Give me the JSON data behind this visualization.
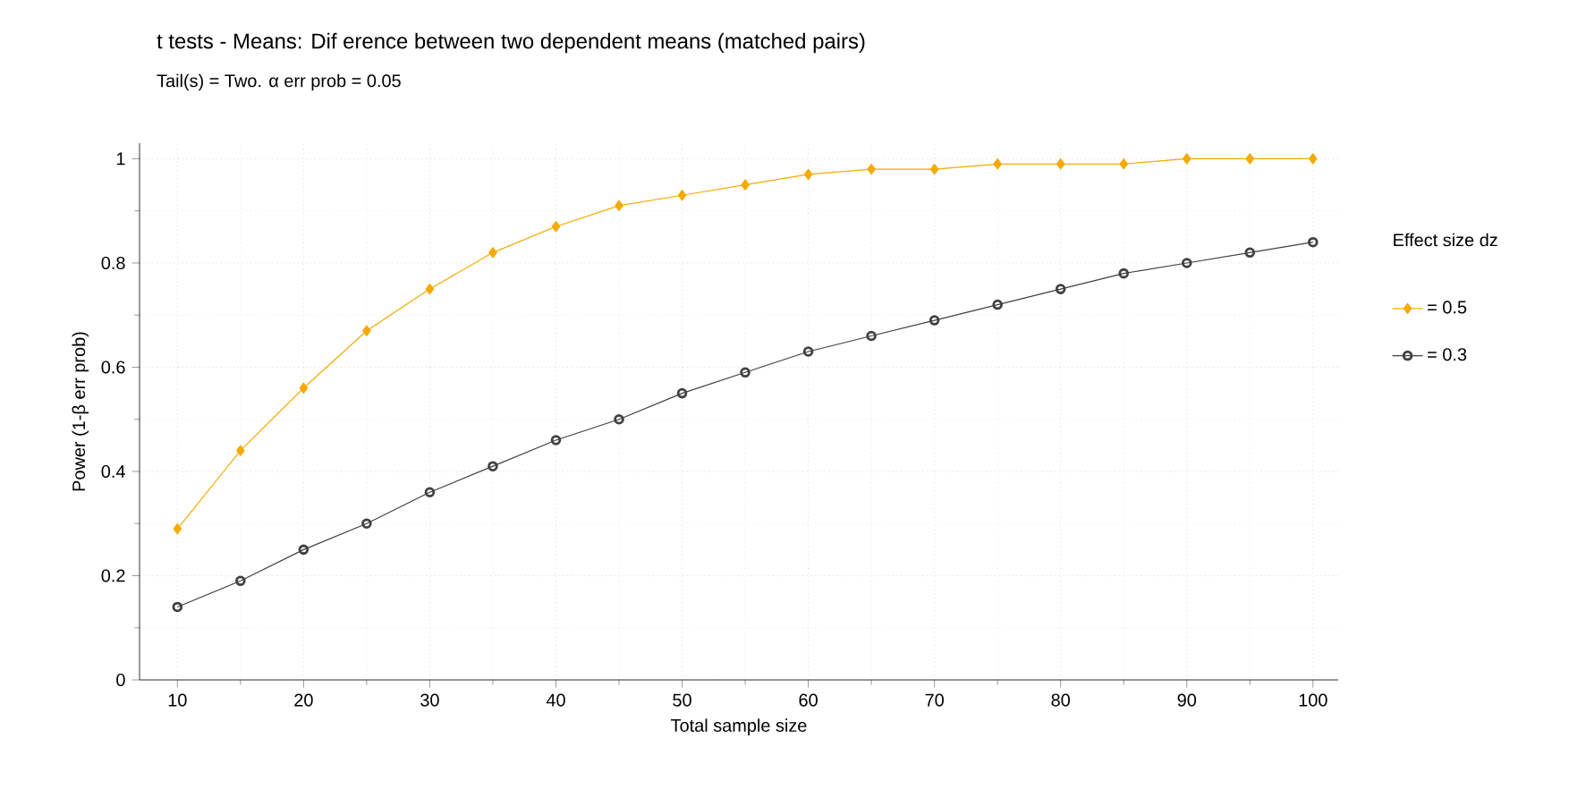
{
  "chart_data": {
    "type": "line",
    "title": "t tests - Means: Dif erence between two dependent means (matched pairs)",
    "subtitle": "Tail(s) = Two. α err prob = 0.05",
    "xlabel": "Total sample size",
    "ylabel": "Power (1-β err prob)",
    "legend_title": "Effect size dz",
    "x": [
      10,
      15,
      20,
      25,
      30,
      35,
      40,
      45,
      50,
      55,
      60,
      65,
      70,
      75,
      80,
      85,
      90,
      95,
      100
    ],
    "series": [
      {
        "name": "= 0.5",
        "color": "#f5aa00",
        "marker": "diamond",
        "values": [
          0.29,
          0.44,
          0.56,
          0.67,
          0.75,
          0.82,
          0.87,
          0.91,
          0.93,
          0.95,
          0.97,
          0.98,
          0.98,
          0.99,
          0.99,
          0.99,
          1.0,
          1.0,
          1.0
        ]
      },
      {
        "name": "= 0.3",
        "color": "#404040",
        "marker": "circle",
        "values": [
          0.14,
          0.19,
          0.25,
          0.3,
          0.36,
          0.41,
          0.46,
          0.5,
          0.55,
          0.59,
          0.63,
          0.66,
          0.69,
          0.72,
          0.75,
          0.78,
          0.8,
          0.82,
          0.84
        ]
      }
    ],
    "xlim": [
      7,
      102
    ],
    "ylim": [
      0,
      1.03
    ],
    "xticks": [
      10,
      20,
      30,
      40,
      50,
      60,
      70,
      80,
      90,
      100
    ],
    "yticks": [
      0,
      0.2,
      0.4,
      0.6,
      0.8,
      1
    ],
    "grid": true,
    "legend": "right",
    "line_style": "solid"
  }
}
